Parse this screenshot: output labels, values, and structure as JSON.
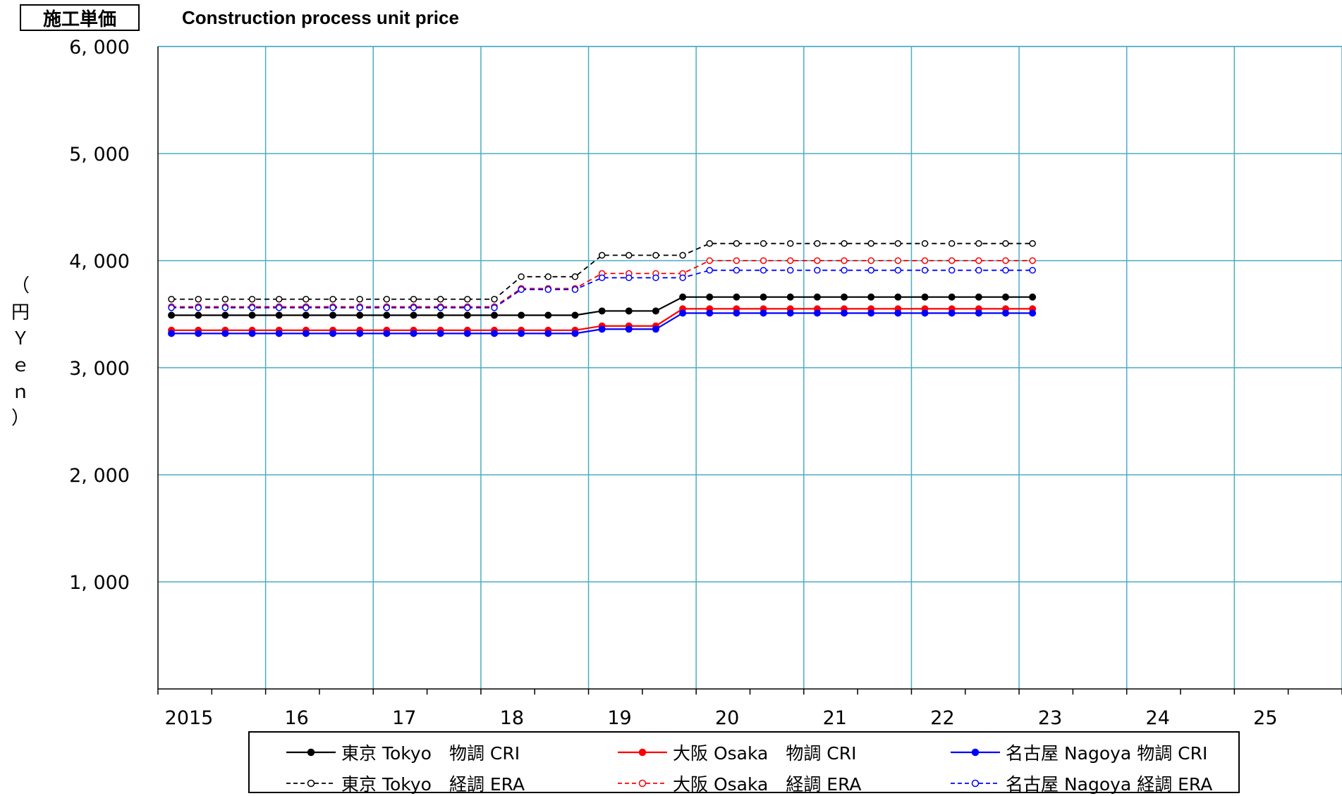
{
  "header": {
    "badge": "施工単価",
    "subtitle": "Construction process unit price"
  },
  "y_axis_label": [
    "（",
    "円",
    "Ｙ",
    "ｅ",
    "ｎ",
    "）"
  ],
  "chart_data": {
    "type": "line",
    "title": "Construction process unit price",
    "ylabel": "（円　Ｙｅｎ）",
    "xlabel": "",
    "ylim": [
      0,
      6000
    ],
    "xlim": [
      2015,
      2026
    ],
    "yticks": [
      1000,
      2000,
      3000,
      4000,
      5000,
      6000
    ],
    "ytick_labels": [
      "1, 000",
      "2, 000",
      "3, 000",
      "4, 000",
      "5, 000",
      "6, 000"
    ],
    "xticks": [
      2015,
      2016,
      2017,
      2018,
      2019,
      2020,
      2021,
      2022,
      2023,
      2024,
      2025
    ],
    "xtick_labels": [
      "2015",
      "16",
      "17",
      "18",
      "19",
      "20",
      "21",
      "22",
      "23",
      "24",
      "25"
    ],
    "grid": true,
    "legend_position": "bottom",
    "x": [
      2015.125,
      2015.375,
      2015.625,
      2015.875,
      2016.125,
      2016.375,
      2016.625,
      2016.875,
      2017.125,
      2017.375,
      2017.625,
      2017.875,
      2018.125,
      2018.375,
      2018.625,
      2018.875,
      2019.125,
      2019.375,
      2019.625,
      2019.875,
      2020.125,
      2020.375,
      2020.625,
      2020.875,
      2021.125,
      2021.375,
      2021.625,
      2021.875,
      2022.125,
      2022.375,
      2022.625,
      2022.875,
      2023.125
    ],
    "series": [
      {
        "name": "東京 Tokyo　物調 CRI",
        "color": "#000000",
        "style": "solid",
        "marker": "filled",
        "values": [
          3490,
          3490,
          3490,
          3490,
          3490,
          3490,
          3490,
          3490,
          3490,
          3490,
          3490,
          3490,
          3490,
          3490,
          3490,
          3490,
          3530,
          3530,
          3530,
          3660,
          3660,
          3660,
          3660,
          3660,
          3660,
          3660,
          3660,
          3660,
          3660,
          3660,
          3660,
          3660,
          3660
        ]
      },
      {
        "name": "大阪 Osaka　物調 CRI",
        "color": "#ff0000",
        "style": "solid",
        "marker": "filled",
        "values": [
          3350,
          3350,
          3350,
          3350,
          3350,
          3350,
          3350,
          3350,
          3350,
          3350,
          3350,
          3350,
          3350,
          3350,
          3350,
          3350,
          3390,
          3390,
          3390,
          3550,
          3550,
          3550,
          3550,
          3550,
          3550,
          3550,
          3550,
          3550,
          3550,
          3550,
          3550,
          3550,
          3550
        ]
      },
      {
        "name": "名古屋 Nagoya 物調 CRI",
        "color": "#0000ff",
        "style": "solid",
        "marker": "filled",
        "values": [
          3320,
          3320,
          3320,
          3320,
          3320,
          3320,
          3320,
          3320,
          3320,
          3320,
          3320,
          3320,
          3320,
          3320,
          3320,
          3320,
          3360,
          3360,
          3360,
          3510,
          3510,
          3510,
          3510,
          3510,
          3510,
          3510,
          3510,
          3510,
          3510,
          3510,
          3510,
          3510,
          3510
        ]
      },
      {
        "name": "東京 Tokyo　経調 ERA",
        "color": "#000000",
        "style": "dashed",
        "marker": "open",
        "values": [
          3640,
          3640,
          3640,
          3640,
          3640,
          3640,
          3640,
          3640,
          3640,
          3640,
          3640,
          3640,
          3640,
          3850,
          3850,
          3850,
          4050,
          4050,
          4050,
          4050,
          4160,
          4160,
          4160,
          4160,
          4160,
          4160,
          4160,
          4160,
          4160,
          4160,
          4160,
          4160,
          4160
        ]
      },
      {
        "name": "大阪 Osaka　経調 ERA",
        "color": "#ff0000",
        "style": "dashed",
        "marker": "open",
        "values": [
          3570,
          3570,
          3570,
          3570,
          3570,
          3570,
          3570,
          3570,
          3570,
          3570,
          3570,
          3570,
          3570,
          3740,
          3740,
          3740,
          3880,
          3880,
          3880,
          3880,
          4000,
          4000,
          4000,
          4000,
          4000,
          4000,
          4000,
          4000,
          4000,
          4000,
          4000,
          4000,
          4000
        ]
      },
      {
        "name": "名古屋 Nagoya 経調 ERA",
        "color": "#0000ff",
        "style": "dashed",
        "marker": "open",
        "values": [
          3560,
          3560,
          3560,
          3560,
          3560,
          3560,
          3560,
          3560,
          3560,
          3560,
          3560,
          3560,
          3560,
          3730,
          3730,
          3730,
          3840,
          3840,
          3840,
          3840,
          3910,
          3910,
          3910,
          3910,
          3910,
          3910,
          3910,
          3910,
          3910,
          3910,
          3910,
          3910,
          3910
        ]
      }
    ]
  },
  "colors": {
    "grid": "#4bacc6",
    "axis": "#000000"
  }
}
